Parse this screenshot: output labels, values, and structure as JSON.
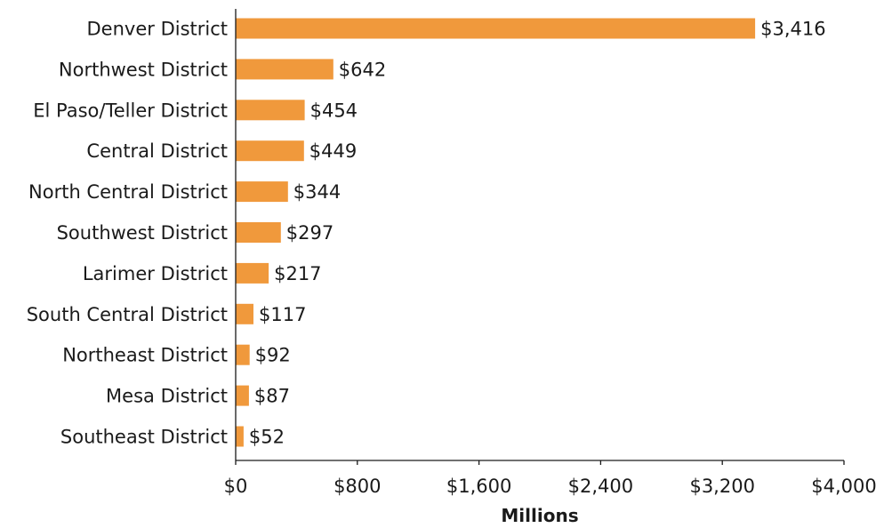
{
  "chart_data": {
    "type": "bar",
    "orientation": "horizontal",
    "categories": [
      "Denver District",
      "Northwest District",
      "El Paso/Teller District",
      "Central District",
      "North Central District",
      "Southwest District",
      "Larimer District",
      "South Central District",
      "Northeast District",
      "Mesa District",
      "Southeast District"
    ],
    "values": [
      3416,
      642,
      454,
      449,
      344,
      297,
      217,
      117,
      92,
      87,
      52
    ],
    "value_labels": [
      "$3,416",
      "$642",
      "$454",
      "$449",
      "$344",
      "$297",
      "$217",
      "$117",
      "$92",
      "$87",
      "$52"
    ],
    "xlabel": "Millions",
    "ylabel": "",
    "xlim": [
      0,
      4000
    ],
    "xticks": [
      0,
      800,
      1600,
      2400,
      3200,
      4000
    ],
    "xtick_labels": [
      "$0",
      "$800",
      "$1,600",
      "$2,400",
      "$3,200",
      "$4,000"
    ],
    "grid": false,
    "bar_color": "#f0993c",
    "axis_color": "#1a1a1a"
  }
}
